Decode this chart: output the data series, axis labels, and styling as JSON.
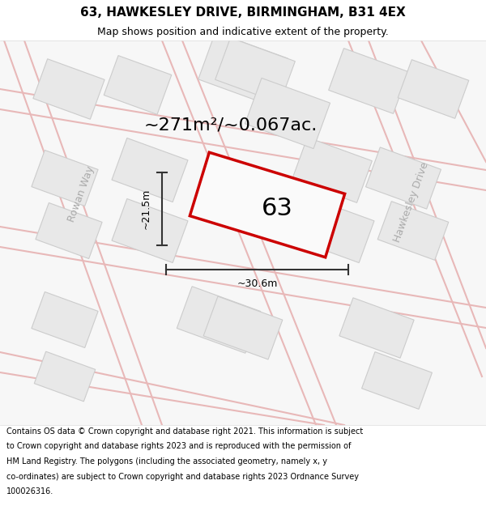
{
  "title": "63, HAWKESLEY DRIVE, BIRMINGHAM, B31 4EX",
  "subtitle": "Map shows position and indicative extent of the property.",
  "area_text": "~271m²/~0.067ac.",
  "label": "63",
  "dim_width": "~30.6m",
  "dim_height": "~21.5m",
  "street_label_left": "Rowan Way",
  "street_label_right": "Hawkesley Drive",
  "footer": "Contains OS data © Crown copyright and database right 2021. This information is subject to Crown copyright and database rights 2023 and is reproduced with the permission of HM Land Registry. The polygons (including the associated geometry, namely x, y co-ordinates) are subject to Crown copyright and database rights 2023 Ordnance Survey 100026316.",
  "plot_color": "#cc0000",
  "dim_line_color": "#333333",
  "title_fontsize": 11,
  "subtitle_fontsize": 9,
  "area_fontsize": 16,
  "label_fontsize": 22,
  "street_fontsize": 9,
  "footer_fontsize": 7.0,
  "road_color": "#e8b8b8",
  "building_face": "#e8e8e8",
  "building_edge": "#cccccc",
  "map_bg": "#f0f0f0",
  "street_color": "#bbbbbb",
  "road_lw": 1.2,
  "build_lw": 0.8
}
